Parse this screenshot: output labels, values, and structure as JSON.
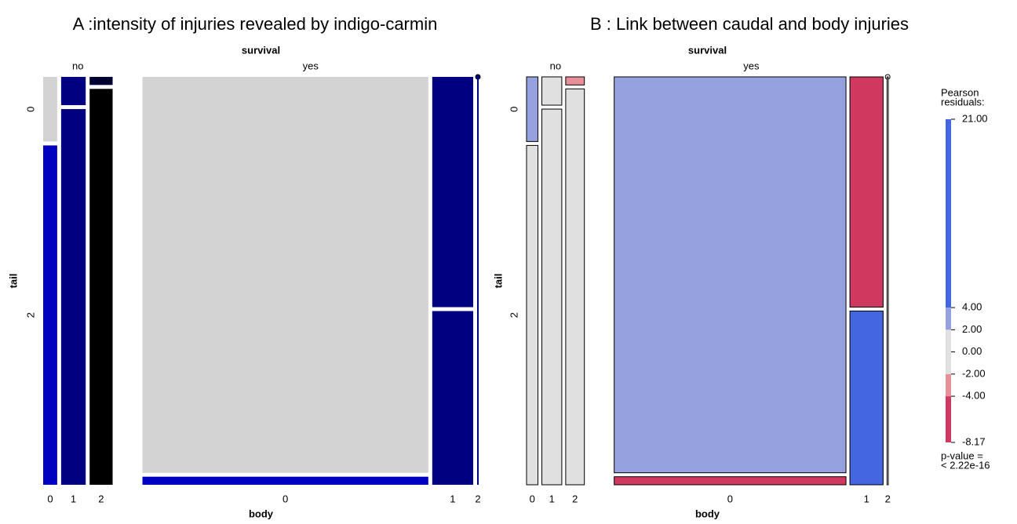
{
  "chart_data": [
    {
      "type": "mosaic",
      "title": "A :intensity of injuries revealed by indigo-carmin",
      "group_label": "survival",
      "x_label": "body",
      "y_label": "tail",
      "tail_levels": [
        "0",
        "2"
      ],
      "tile_borders": false,
      "groups": [
        {
          "name": "no",
          "columns": [
            {
              "body": "0",
              "width": 3.6,
              "tail_shares": [
                16,
                84
              ],
              "colors": [
                "#d3d3d3",
                "#0000c0"
              ]
            },
            {
              "body": "1",
              "width": 6.3,
              "tail_shares": [
                7,
                93
              ],
              "colors": [
                "#000080",
                "#000080"
              ]
            },
            {
              "body": "2",
              "width": 5.9,
              "tail_shares": [
                2,
                98
              ],
              "colors": [
                "#000033",
                "#000000"
              ]
            }
          ]
        },
        {
          "name": "yes",
          "columns": [
            {
              "body": "0",
              "width": 73.3,
              "tail_shares": [
                98,
                2
              ],
              "colors": [
                "#d3d3d3",
                "#0000c0"
              ]
            },
            {
              "body": "1",
              "width": 10.5,
              "tail_shares": [
                57,
                43
              ],
              "colors": [
                "#000080",
                "#000080"
              ]
            },
            {
              "body": "2",
              "width": 0.4,
              "tail_shares": [
                0,
                100
              ],
              "colors": [
                "#000080",
                "#000080"
              ]
            }
          ]
        }
      ]
    },
    {
      "type": "mosaic",
      "title": "B : Link between caudal and body injuries",
      "group_label": "survival",
      "x_label": "body",
      "y_label": "tail",
      "tail_levels": [
        "0",
        "2"
      ],
      "tile_borders": true,
      "groups": [
        {
          "name": "no",
          "columns": [
            {
              "body": "0",
              "width": 3.6,
              "tail_shares": [
                16,
                84
              ],
              "colors": [
                "#96a1df",
                "#e0e0e0"
              ]
            },
            {
              "body": "1",
              "width": 6.3,
              "tail_shares": [
                7,
                93
              ],
              "colors": [
                "#e0e0e0",
                "#e0e0e0"
              ]
            },
            {
              "body": "2",
              "width": 5.9,
              "tail_shares": [
                2,
                98
              ],
              "colors": [
                "#e8909a",
                "#e0e0e0"
              ]
            }
          ]
        },
        {
          "name": "yes",
          "columns": [
            {
              "body": "0",
              "width": 73.3,
              "tail_shares": [
                98,
                2
              ],
              "colors": [
                "#96a1df",
                "#d03860"
              ]
            },
            {
              "body": "1",
              "width": 10.5,
              "tail_shares": [
                57,
                43
              ],
              "colors": [
                "#d03860",
                "#4466e0"
              ]
            },
            {
              "body": "2",
              "width": 0.4,
              "tail_shares": [
                0,
                100
              ],
              "colors": [
                "#ffffff",
                "#ffffff"
              ]
            }
          ]
        }
      ],
      "legend": {
        "title": [
          "Pearson",
          "residuals:"
        ],
        "ylim": [
          -8.17,
          21
        ],
        "breaks": [
          -8.17,
          -4,
          -2,
          2,
          4,
          21
        ],
        "colors": [
          "#d03860",
          "#e8909a",
          "#e0e0e0",
          "#96a1df",
          "#4466e0"
        ],
        "ticks": [
          {
            "value": 21,
            "label": "21.00"
          },
          {
            "value": 4,
            "label": "4.00"
          },
          {
            "value": 2,
            "label": "2.00"
          },
          {
            "value": 0,
            "label": "0.00"
          },
          {
            "value": -2,
            "label": "-2.00"
          },
          {
            "value": -4,
            "label": "-4.00"
          },
          {
            "value": -8.17,
            "label": "-8.17"
          }
        ],
        "p_value": [
          "p-value =",
          "< 2.22e-16"
        ]
      }
    }
  ]
}
